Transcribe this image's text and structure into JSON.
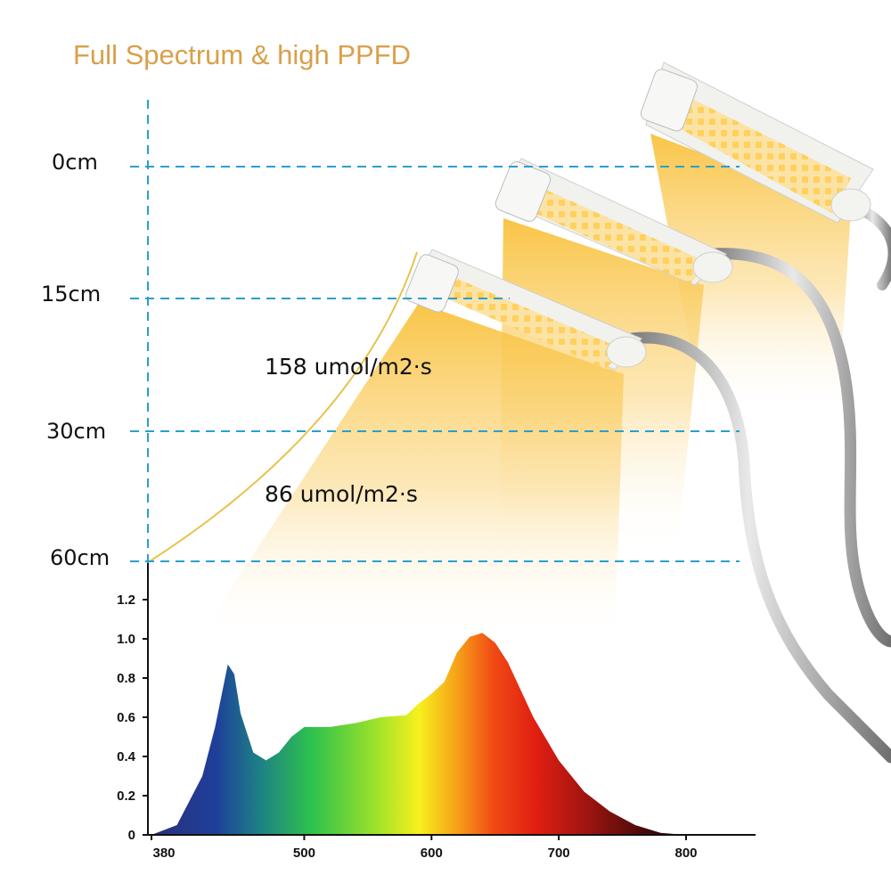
{
  "title": "Full Spectrum & high PPFD",
  "colors": {
    "title": "#d9a04a",
    "guide_line": "#2a9fd0",
    "light_beam": "#f7c545",
    "ppfd_curve": "#e8c24a",
    "lamp_body": "#f4f4f2",
    "led": "#ffd56a",
    "gooseneck": "#a9a9a9"
  },
  "distances": [
    "0cm",
    "15cm",
    "30cm",
    "60cm"
  ],
  "ppfd_readings": [
    {
      "value": "158 umol/m2·s"
    },
    {
      "value": "86 umol/m2·s"
    }
  ],
  "chart_data": {
    "type": "area",
    "xlabel": "",
    "ylabel": "",
    "xlim": [
      380,
      800
    ],
    "ylim": [
      0,
      1.3
    ],
    "x_ticks": [
      "380",
      "500",
      "600",
      "700",
      "800"
    ],
    "y_ticks": [
      "0",
      "0.2",
      "0.4",
      "0.6",
      "0.8",
      "1.0",
      "1.2"
    ],
    "fill": "visible-spectrum gradient",
    "x": [
      380,
      400,
      420,
      430,
      440,
      445,
      450,
      460,
      470,
      480,
      490,
      500,
      510,
      520,
      540,
      560,
      580,
      590,
      600,
      610,
      620,
      630,
      640,
      650,
      660,
      680,
      700,
      720,
      740,
      760,
      780,
      800
    ],
    "y": [
      0.0,
      0.05,
      0.3,
      0.55,
      0.87,
      0.82,
      0.62,
      0.42,
      0.38,
      0.42,
      0.5,
      0.55,
      0.55,
      0.55,
      0.57,
      0.6,
      0.61,
      0.67,
      0.72,
      0.78,
      0.93,
      1.01,
      1.03,
      0.98,
      0.88,
      0.6,
      0.38,
      0.22,
      0.12,
      0.05,
      0.01,
      0.0
    ]
  }
}
